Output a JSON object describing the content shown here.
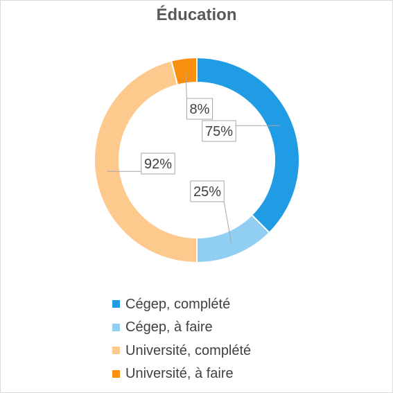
{
  "colors": {
    "cegep_complete": "#1f9ce4",
    "cegep_todo": "#91cff2",
    "univ_complete": "#fec98d",
    "univ_todo": "#f98f0e",
    "label_text": "#404040",
    "title_text": "#595959"
  },
  "chart_data": {
    "type": "pie",
    "variant": "doughnut",
    "title": "Éducation",
    "rings": [
      {
        "name": "Cégep",
        "slices": [
          {
            "label": "Cégep, complété",
            "value": 75,
            "data_label": "75%"
          },
          {
            "label": "Cégep, à faire",
            "value": 25,
            "data_label": "25%"
          }
        ]
      },
      {
        "name": "Université",
        "slices": [
          {
            "label": "Université, complété",
            "value": 92,
            "data_label": "92%"
          },
          {
            "label": "Université, à faire",
            "value": 8,
            "data_label": "8%"
          }
        ]
      }
    ],
    "legend": {
      "position": "bottom",
      "entries": [
        "Cégep, complété",
        "Cégep, à faire",
        "Université, complété",
        "Université, à faire"
      ]
    }
  }
}
